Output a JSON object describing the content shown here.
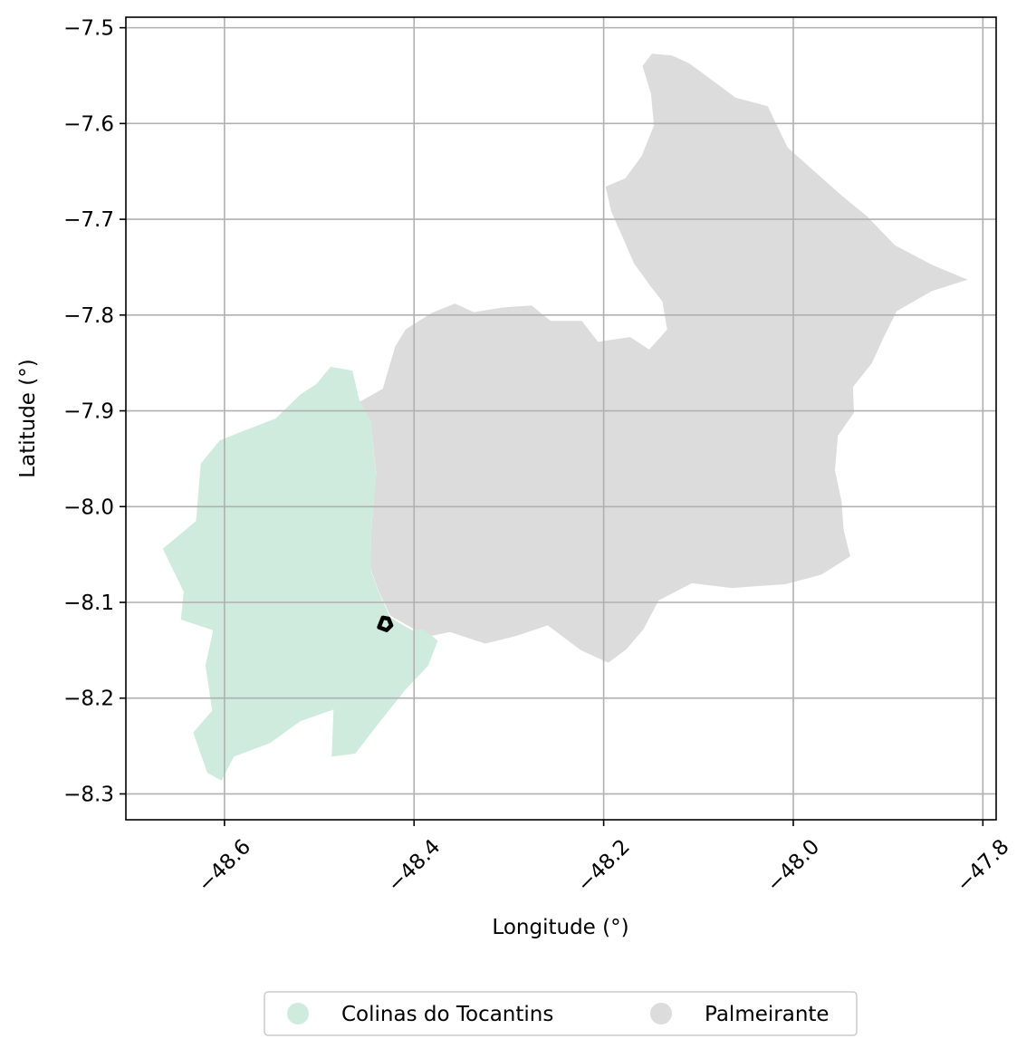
{
  "axes": {
    "xlabel": "Longitude (°)",
    "ylabel": "Latitude (°)",
    "xlim": [
      -48.704,
      -47.786
    ],
    "ylim": [
      -8.327,
      -7.489
    ],
    "x_ticks": [
      -48.6,
      -48.4,
      -48.2,
      -48.0,
      -47.8
    ],
    "x_tick_labels": [
      "−48.6",
      "−48.4",
      "−48.2",
      "−48.0",
      "−47.8"
    ],
    "y_ticks": [
      -7.5,
      -7.6,
      -7.7,
      -7.8,
      -7.9,
      -8.0,
      -8.1,
      -8.2,
      -8.3
    ],
    "y_tick_labels": [
      "−7.5",
      "−7.6",
      "−7.7",
      "−7.8",
      "−7.9",
      "−8.0",
      "−8.1",
      "−8.2",
      "−8.3"
    ],
    "grid": true,
    "grid_color": "#b0b0b0"
  },
  "legend": {
    "placement": "bottom-center",
    "entries": [
      {
        "label": "Colinas do Tocantins",
        "color": "#cfebde"
      },
      {
        "label": "Palmeirante",
        "color": "#dcdcdc"
      }
    ]
  },
  "regions": [
    {
      "name": "Palmeirante",
      "color": "#dcdcdc",
      "coords": [
        [
          -48.433,
          -7.877
        ],
        [
          -48.42,
          -7.833
        ],
        [
          -48.409,
          -7.815
        ],
        [
          -48.382,
          -7.798
        ],
        [
          -48.357,
          -7.788
        ],
        [
          -48.337,
          -7.797
        ],
        [
          -48.306,
          -7.792
        ],
        [
          -48.276,
          -7.79
        ],
        [
          -48.256,
          -7.806
        ],
        [
          -48.223,
          -7.806
        ],
        [
          -48.206,
          -7.828
        ],
        [
          -48.172,
          -7.823
        ],
        [
          -48.152,
          -7.836
        ],
        [
          -48.133,
          -7.815
        ],
        [
          -48.138,
          -7.786
        ],
        [
          -48.152,
          -7.768
        ],
        [
          -48.168,
          -7.746
        ],
        [
          -48.179,
          -7.721
        ],
        [
          -48.192,
          -7.692
        ],
        [
          -48.198,
          -7.666
        ],
        [
          -48.177,
          -7.657
        ],
        [
          -48.16,
          -7.634
        ],
        [
          -48.147,
          -7.602
        ],
        [
          -48.15,
          -7.569
        ],
        [
          -48.159,
          -7.54
        ],
        [
          -48.149,
          -7.527
        ],
        [
          -48.128,
          -7.529
        ],
        [
          -48.11,
          -7.537
        ],
        [
          -48.084,
          -7.556
        ],
        [
          -48.061,
          -7.573
        ],
        [
          -48.027,
          -7.582
        ],
        [
          -48.006,
          -7.625
        ],
        [
          -47.973,
          -7.654
        ],
        [
          -47.948,
          -7.676
        ],
        [
          -47.922,
          -7.697
        ],
        [
          -47.893,
          -7.727
        ],
        [
          -47.853,
          -7.748
        ],
        [
          -47.816,
          -7.763
        ],
        [
          -47.854,
          -7.775
        ],
        [
          -47.891,
          -7.796
        ],
        [
          -47.905,
          -7.824
        ],
        [
          -47.917,
          -7.85
        ],
        [
          -47.937,
          -7.875
        ],
        [
          -47.936,
          -7.902
        ],
        [
          -47.953,
          -7.926
        ],
        [
          -47.956,
          -7.962
        ],
        [
          -47.949,
          -7.995
        ],
        [
          -47.947,
          -8.024
        ],
        [
          -47.94,
          -8.052
        ],
        [
          -47.97,
          -8.071
        ],
        [
          -48.008,
          -8.081
        ],
        [
          -48.065,
          -8.085
        ],
        [
          -48.107,
          -8.08
        ],
        [
          -48.142,
          -8.098
        ],
        [
          -48.158,
          -8.128
        ],
        [
          -48.176,
          -8.149
        ],
        [
          -48.195,
          -8.163
        ],
        [
          -48.224,
          -8.15
        ],
        [
          -48.259,
          -8.124
        ],
        [
          -48.292,
          -8.135
        ],
        [
          -48.325,
          -8.143
        ],
        [
          -48.362,
          -8.131
        ],
        [
          -48.387,
          -8.136
        ],
        [
          -48.4,
          -8.128
        ],
        [
          -48.425,
          -8.114
        ],
        [
          -48.437,
          -8.089
        ],
        [
          -48.446,
          -8.065
        ],
        [
          -48.445,
          -8.022
        ],
        [
          -48.44,
          -7.966
        ],
        [
          -48.446,
          -7.91
        ],
        [
          -48.458,
          -7.891
        ]
      ]
    },
    {
      "name": "Colinas do Tocantins",
      "color": "#cfebde",
      "coords": [
        [
          -48.488,
          -7.854
        ],
        [
          -48.503,
          -7.872
        ],
        [
          -48.52,
          -7.883
        ],
        [
          -48.546,
          -7.908
        ],
        [
          -48.58,
          -7.921
        ],
        [
          -48.605,
          -7.931
        ],
        [
          -48.625,
          -7.955
        ],
        [
          -48.63,
          -8.015
        ],
        [
          -48.665,
          -8.044
        ],
        [
          -48.643,
          -8.089
        ],
        [
          -48.646,
          -8.118
        ],
        [
          -48.612,
          -8.129
        ],
        [
          -48.62,
          -8.166
        ],
        [
          -48.613,
          -8.213
        ],
        [
          -48.633,
          -8.236
        ],
        [
          -48.618,
          -8.278
        ],
        [
          -48.603,
          -8.286
        ],
        [
          -48.59,
          -8.261
        ],
        [
          -48.552,
          -8.247
        ],
        [
          -48.52,
          -8.224
        ],
        [
          -48.485,
          -8.212
        ],
        [
          -48.487,
          -8.261
        ],
        [
          -48.462,
          -8.258
        ],
        [
          -48.438,
          -8.227
        ],
        [
          -48.409,
          -8.191
        ],
        [
          -48.385,
          -8.166
        ],
        [
          -48.375,
          -8.14
        ],
        [
          -48.39,
          -8.128
        ],
        [
          -48.402,
          -8.129
        ],
        [
          -48.425,
          -8.116
        ],
        [
          -48.437,
          -8.09
        ],
        [
          -48.446,
          -8.066
        ],
        [
          -48.445,
          -8.02
        ],
        [
          -48.44,
          -7.968
        ],
        [
          -48.446,
          -7.91
        ],
        [
          -48.458,
          -7.888
        ],
        [
          -48.465,
          -7.858
        ]
      ]
    }
  ],
  "marker": {
    "name": "outlined-point",
    "color": "#000000",
    "coords": [
      [
        -48.433,
        -8.116
      ],
      [
        -48.427,
        -8.117
      ],
      [
        -48.424,
        -8.124
      ],
      [
        -48.429,
        -8.129
      ],
      [
        -48.437,
        -8.126
      ]
    ]
  }
}
